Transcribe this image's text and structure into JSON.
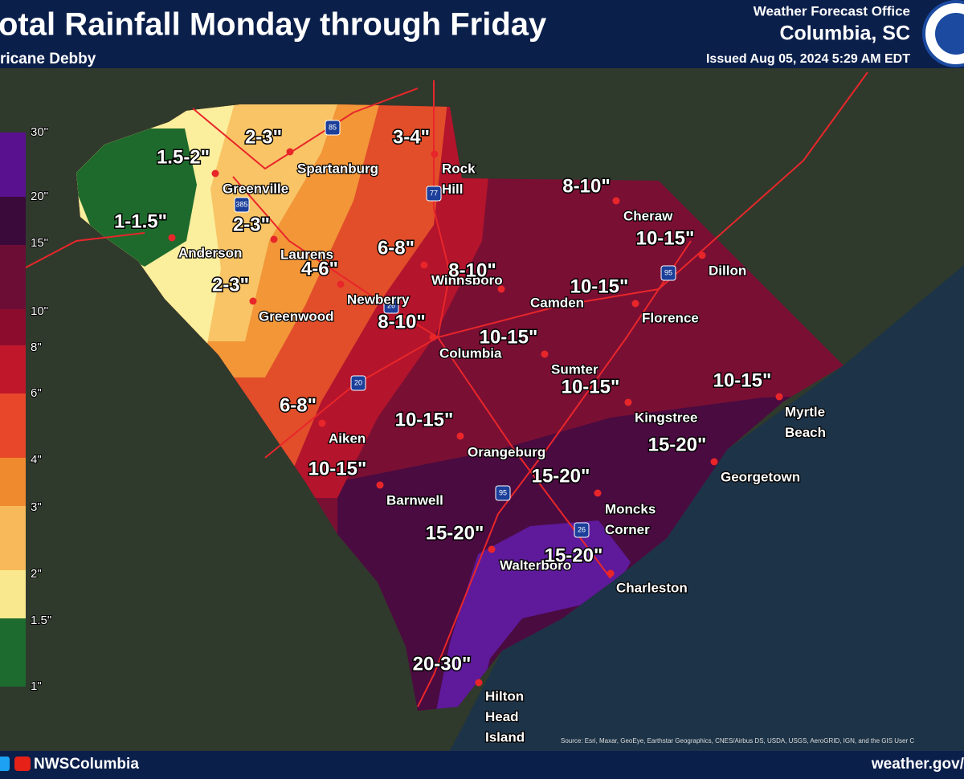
{
  "header": {
    "title": "otal Rainfall Monday through Friday",
    "subtitle": "ricane Debby",
    "office": "Weather Forecast Office",
    "location": "Columbia, SC",
    "issued": "Issued Aug 05, 2024 5:29 AM EDT"
  },
  "legend": {
    "labels": [
      "30\"",
      "20\"",
      "15\"",
      "10\"",
      "8\"",
      "6\"",
      "4\"",
      "3\"",
      "2\"",
      "1.5\"",
      "1\""
    ]
  },
  "amounts": [
    "1.5-2\"",
    "2-3\"",
    "3-4\"",
    "8-10\"",
    "1-1.5\"",
    "2-3\"",
    "10-15\"",
    "6-8\"",
    "4-6\"",
    "8-10\"",
    "2-3\"",
    "10-15\"",
    "8-10\"",
    "10-15\"",
    "10-15\"",
    "10-15\"",
    "6-8\"",
    "10-15\"",
    "15-20\"",
    "10-15\"",
    "15-20\"",
    "15-20\"",
    "15-20\"",
    "20-30\""
  ],
  "cities": [
    [
      "Spartanburg"
    ],
    [
      "Rock",
      "Hill"
    ],
    [
      "Greenville"
    ],
    [
      "Cheraw"
    ],
    [
      "Anderson"
    ],
    [
      "Laurens"
    ],
    [
      "Dillon"
    ],
    [
      "Winnsboro"
    ],
    [
      "Camden"
    ],
    [
      "Newberry"
    ],
    [
      "Greenwood"
    ],
    [
      "Florence"
    ],
    [
      "Columbia"
    ],
    [
      "Sumter"
    ],
    [
      "Kingstree"
    ],
    [
      "Myrtle",
      "Beach"
    ],
    [
      "Aiken"
    ],
    [
      "Orangeburg"
    ],
    [
      "Georgetown"
    ],
    [
      "Barnwell"
    ],
    [
      "Moncks",
      "Corner"
    ],
    [
      "Walterboro"
    ],
    [
      "Charleston"
    ],
    [
      "Hilton",
      "Head",
      "Island"
    ]
  ],
  "interstates": [
    "85",
    "385",
    "77",
    "26",
    "20",
    "95",
    "95",
    "26"
  ],
  "footer": {
    "handle": "NWSColumbia",
    "website": "weather.gov/",
    "source": "Source: Esri, Maxar, GeoEye, Earthstar Geographics, CNES/Airbus DS, USDA, USGS, AeroGRID, IGN, and the GIS User C"
  }
}
